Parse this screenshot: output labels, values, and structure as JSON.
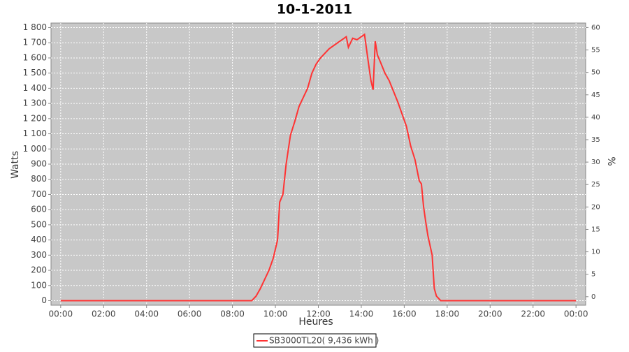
{
  "chart_data": {
    "type": "line",
    "title": "10-1-2011",
    "x_label": "Heures",
    "y_label": "Watts",
    "y2_label": "%",
    "x": [
      0,
      8.9,
      9.1,
      9.3,
      9.5,
      9.7,
      9.9,
      10.1,
      10.2,
      10.35,
      10.5,
      10.7,
      10.9,
      11.1,
      11.3,
      11.5,
      11.7,
      11.9,
      12.1,
      12.3,
      12.5,
      12.7,
      12.9,
      13.1,
      13.3,
      13.4,
      13.6,
      13.8,
      14.0,
      14.15,
      14.3,
      14.45,
      14.55,
      14.65,
      14.75,
      14.9,
      15.1,
      15.3,
      15.5,
      15.7,
      15.9,
      16.1,
      16.3,
      16.5,
      16.7,
      16.8,
      16.9,
      17.0,
      17.1,
      17.3,
      17.4,
      17.5,
      17.7,
      24
    ],
    "series": [
      {
        "name": "SB3000TL20( 9,436 kWh )",
        "color": "#ff3333",
        "values": [
          0,
          0,
          30,
          80,
          140,
          200,
          280,
          400,
          650,
          700,
          900,
          1090,
          1180,
          1280,
          1340,
          1400,
          1500,
          1560,
          1600,
          1630,
          1660,
          1680,
          1700,
          1720,
          1740,
          1670,
          1730,
          1720,
          1740,
          1755,
          1600,
          1450,
          1390,
          1710,
          1620,
          1570,
          1500,
          1450,
          1380,
          1310,
          1230,
          1150,
          1020,
          930,
          790,
          770,
          620,
          520,
          430,
          300,
          80,
          30,
          0,
          0
        ]
      }
    ],
    "xlim": [
      -0.45,
      24.45
    ],
    "xticks": [
      {
        "value": 0,
        "label": "00:00"
      },
      {
        "value": 2,
        "label": "02:00"
      },
      {
        "value": 4,
        "label": "04:00"
      },
      {
        "value": 6,
        "label": "06:00"
      },
      {
        "value": 8,
        "label": "08:00"
      },
      {
        "value": 10,
        "label": "10:00"
      },
      {
        "value": 12,
        "label": "12:00"
      },
      {
        "value": 14,
        "label": "14:00"
      },
      {
        "value": 16,
        "label": "16:00"
      },
      {
        "value": 18,
        "label": "18:00"
      },
      {
        "value": 20,
        "label": "20:00"
      },
      {
        "value": 22,
        "label": "22:00"
      },
      {
        "value": 24,
        "label": "00:00"
      }
    ],
    "ylim": [
      -30,
      1830
    ],
    "yticks": [
      0,
      100,
      200,
      300,
      400,
      500,
      600,
      700,
      800,
      900,
      {
        "value": 1000,
        "label": "1 000"
      },
      {
        "value": 1100,
        "label": "1 100"
      },
      {
        "value": 1200,
        "label": "1 200"
      },
      {
        "value": 1300,
        "label": "1 300"
      },
      {
        "value": 1400,
        "label": "1 400"
      },
      {
        "value": 1500,
        "label": "1 500"
      },
      {
        "value": 1600,
        "label": "1 600"
      },
      {
        "value": 1700,
        "label": "1 700"
      },
      {
        "value": 1800,
        "label": "1 800"
      }
    ],
    "y2lim": [
      -1.9,
      61
    ],
    "y2ticks": [
      0,
      5,
      10,
      15,
      20,
      25,
      30,
      35,
      40,
      45,
      50,
      55,
      60
    ],
    "grid": true,
    "background": "#c8c8c8",
    "legend": "bottom"
  }
}
